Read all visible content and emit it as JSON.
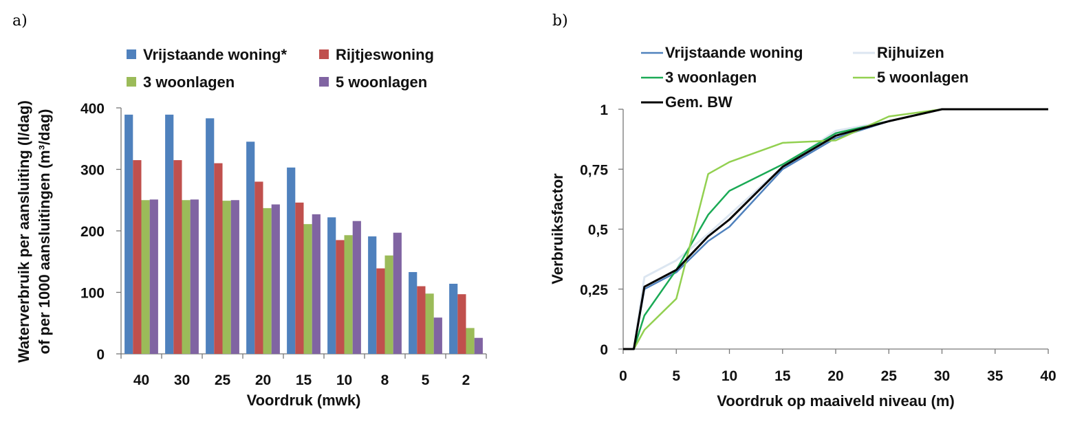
{
  "panels": {
    "a_label": "a)",
    "b_label": "b)"
  },
  "chart_data": [
    {
      "type": "bar",
      "xlabel": "Voordruk (mwk)",
      "ylabel_line1": "Waterverbruik per aansluiting (l/dag)",
      "ylabel_line2": "of  per 1000 aansluitingen (m³/dag)",
      "ylim": [
        0,
        400
      ],
      "yticks": [
        "0",
        "100",
        "200",
        "300",
        "400"
      ],
      "categories": [
        "40",
        "30",
        "25",
        "20",
        "15",
        "10",
        "8",
        "5",
        "2"
      ],
      "series": [
        {
          "name": "Vrijstaande woning*",
          "color": "#4F81BD",
          "values": [
            389,
            389,
            383,
            345,
            303,
            222,
            191,
            133,
            114
          ]
        },
        {
          "name": "Rijtjeswoning",
          "color": "#C0504D",
          "values": [
            315,
            315,
            310,
            280,
            246,
            185,
            139,
            110,
            97
          ]
        },
        {
          "name": "3 woonlagen",
          "color": "#9BBB59",
          "values": [
            250,
            250,
            249,
            237,
            211,
            193,
            160,
            98,
            42
          ]
        },
        {
          "name": "5 woonlagen",
          "color": "#8064A2",
          "values": [
            251,
            251,
            250,
            243,
            227,
            216,
            197,
            59,
            26
          ]
        }
      ],
      "legend_position": "top"
    },
    {
      "type": "line",
      "xlabel": "Voordruk op maaiveld niveau (m)",
      "ylabel": "Verbruiksfactor",
      "xlim": [
        0,
        40
      ],
      "ylim": [
        0,
        1
      ],
      "xticks": [
        "0",
        "5",
        "10",
        "15",
        "20",
        "25",
        "30",
        "35",
        "40"
      ],
      "yticks": [
        "0",
        "0,25",
        "0,5",
        "0,75",
        "1"
      ],
      "series": [
        {
          "name": "Vrijstaande woning",
          "color": "#4F81BD",
          "width": 2.5,
          "x": [
            0,
            1,
            2,
            5,
            8,
            10,
            15,
            20,
            25,
            30,
            40
          ],
          "y": [
            0,
            0,
            0.25,
            0.32,
            0.45,
            0.51,
            0.75,
            0.88,
            0.95,
            1,
            1
          ]
        },
        {
          "name": "Rijhuizen",
          "color": "#DCE6F1",
          "width": 3,
          "x": [
            0,
            1,
            2,
            5,
            8,
            10,
            15,
            20,
            25,
            30,
            40
          ],
          "y": [
            0,
            0,
            0.3,
            0.37,
            0.48,
            0.56,
            0.76,
            0.91,
            0.95,
            1,
            1
          ]
        },
        {
          "name": "3 woonlagen",
          "color": "#1AAA55",
          "width": 2.5,
          "x": [
            0,
            1,
            2,
            5,
            8,
            10,
            15,
            20,
            25,
            30,
            40
          ],
          "y": [
            0,
            0,
            0.14,
            0.33,
            0.56,
            0.66,
            0.77,
            0.9,
            0.95,
            1,
            1
          ]
        },
        {
          "name": "5 woonlagen",
          "color": "#92D050",
          "width": 2.5,
          "x": [
            0,
            1,
            2,
            5,
            8,
            10,
            15,
            20,
            25,
            30,
            40
          ],
          "y": [
            0,
            0,
            0.08,
            0.21,
            0.73,
            0.78,
            0.86,
            0.87,
            0.97,
            1,
            1
          ]
        },
        {
          "name": "Gem. BW",
          "color": "#000000",
          "width": 3,
          "x": [
            0,
            1,
            2,
            5,
            8,
            10,
            15,
            20,
            25,
            30,
            40
          ],
          "y": [
            0,
            0,
            0.26,
            0.33,
            0.47,
            0.54,
            0.76,
            0.89,
            0.95,
            1,
            1
          ]
        }
      ],
      "legend_position": "top"
    }
  ]
}
